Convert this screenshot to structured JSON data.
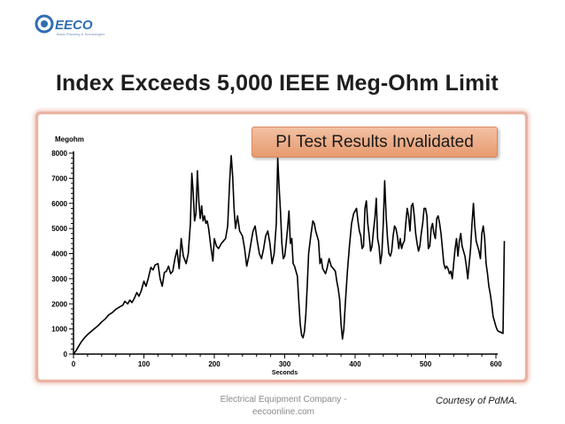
{
  "logo": {
    "text": "EECO",
    "tagline": "Basic Planning & Technologies",
    "accent": "#2f6db3"
  },
  "slide": {
    "title": "Index Exceeds 5,000 IEEE Meg-Ohm Limit"
  },
  "callout": {
    "text": "PI Test Results Invalidated",
    "color": "#ec9f75"
  },
  "footer": {
    "line1": "Electrical Equipment Company -",
    "line2": "eecoonline.com"
  },
  "courtesy": "Courtesy of PdMA.",
  "chart_data": {
    "type": "line",
    "title": "",
    "xlabel": "Seconds",
    "ylabel": "Megohm",
    "xlim": [
      0,
      600
    ],
    "ylim": [
      0,
      8000
    ],
    "xticks": [
      0,
      100,
      200,
      300,
      400,
      500,
      600
    ],
    "yticks": [
      0,
      1000,
      2000,
      3000,
      4000,
      5000,
      6000,
      7000,
      8000
    ],
    "grid": false,
    "series": [
      {
        "color": "#000000",
        "points": [
          [
            0,
            0
          ],
          [
            4,
            150
          ],
          [
            8,
            350
          ],
          [
            12,
            520
          ],
          [
            16,
            660
          ],
          [
            20,
            780
          ],
          [
            25,
            900
          ],
          [
            30,
            1020
          ],
          [
            35,
            1130
          ],
          [
            40,
            1280
          ],
          [
            45,
            1400
          ],
          [
            50,
            1560
          ],
          [
            55,
            1650
          ],
          [
            60,
            1780
          ],
          [
            65,
            1870
          ],
          [
            70,
            1950
          ],
          [
            73,
            2100
          ],
          [
            77,
            2000
          ],
          [
            80,
            2150
          ],
          [
            83,
            2050
          ],
          [
            86,
            2200
          ],
          [
            90,
            2450
          ],
          [
            93,
            2300
          ],
          [
            96,
            2500
          ],
          [
            100,
            2900
          ],
          [
            103,
            2700
          ],
          [
            106,
            3000
          ],
          [
            110,
            3450
          ],
          [
            113,
            3350
          ],
          [
            116,
            3550
          ],
          [
            120,
            3600
          ],
          [
            123,
            3000
          ],
          [
            126,
            2700
          ],
          [
            129,
            3250
          ],
          [
            132,
            3300
          ],
          [
            135,
            3500
          ],
          [
            138,
            3200
          ],
          [
            141,
            3300
          ],
          [
            144,
            3800
          ],
          [
            147,
            4150
          ],
          [
            150,
            3400
          ],
          [
            153,
            4600
          ],
          [
            156,
            3900
          ],
          [
            160,
            3600
          ],
          [
            163,
            4000
          ],
          [
            166,
            5200
          ],
          [
            168,
            7200
          ],
          [
            170,
            6400
          ],
          [
            172,
            5300
          ],
          [
            174,
            5600
          ],
          [
            176,
            7300
          ],
          [
            178,
            6100
          ],
          [
            180,
            5400
          ],
          [
            182,
            5900
          ],
          [
            184,
            5300
          ],
          [
            186,
            5500
          ],
          [
            188,
            5200
          ],
          [
            190,
            5300
          ],
          [
            192,
            5000
          ],
          [
            195,
            4300
          ],
          [
            198,
            3700
          ],
          [
            200,
            4600
          ],
          [
            203,
            4300
          ],
          [
            206,
            4200
          ],
          [
            210,
            4400
          ],
          [
            213,
            4500
          ],
          [
            216,
            4600
          ],
          [
            219,
            5100
          ],
          [
            222,
            7000
          ],
          [
            224,
            7900
          ],
          [
            226,
            7100
          ],
          [
            228,
            5800
          ],
          [
            230,
            5000
          ],
          [
            233,
            5500
          ],
          [
            236,
            4900
          ],
          [
            240,
            4700
          ],
          [
            243,
            4200
          ],
          [
            246,
            3500
          ],
          [
            249,
            3900
          ],
          [
            252,
            4400
          ],
          [
            255,
            4900
          ],
          [
            258,
            5100
          ],
          [
            261,
            4500
          ],
          [
            264,
            4000
          ],
          [
            267,
            3800
          ],
          [
            270,
            4200
          ],
          [
            273,
            4700
          ],
          [
            276,
            4900
          ],
          [
            279,
            4400
          ],
          [
            282,
            3600
          ],
          [
            285,
            4000
          ],
          [
            288,
            5200
          ],
          [
            290,
            7800
          ],
          [
            292,
            6700
          ],
          [
            294,
            5700
          ],
          [
            296,
            4400
          ],
          [
            298,
            3800
          ],
          [
            300,
            3900
          ],
          [
            302,
            4400
          ],
          [
            304,
            5000
          ],
          [
            306,
            5700
          ],
          [
            308,
            4400
          ],
          [
            310,
            4600
          ],
          [
            312,
            3600
          ],
          [
            314,
            3500
          ],
          [
            316,
            3300
          ],
          [
            318,
            3100
          ],
          [
            320,
            2100
          ],
          [
            322,
            1200
          ],
          [
            324,
            750
          ],
          [
            326,
            650
          ],
          [
            328,
            900
          ],
          [
            330,
            1600
          ],
          [
            332,
            2700
          ],
          [
            334,
            4000
          ],
          [
            337,
            4700
          ],
          [
            340,
            5300
          ],
          [
            342,
            5200
          ],
          [
            344,
            4900
          ],
          [
            346,
            4700
          ],
          [
            348,
            4500
          ],
          [
            350,
            3600
          ],
          [
            352,
            3800
          ],
          [
            354,
            3400
          ],
          [
            356,
            3300
          ],
          [
            358,
            3200
          ],
          [
            360,
            3400
          ],
          [
            363,
            3800
          ],
          [
            366,
            3500
          ],
          [
            369,
            3400
          ],
          [
            372,
            3300
          ],
          [
            374,
            2900
          ],
          [
            376,
            2600
          ],
          [
            378,
            2200
          ],
          [
            380,
            1200
          ],
          [
            382,
            600
          ],
          [
            384,
            1000
          ],
          [
            386,
            2000
          ],
          [
            389,
            3300
          ],
          [
            392,
            4300
          ],
          [
            395,
            5200
          ],
          [
            398,
            5600
          ],
          [
            400,
            5700
          ],
          [
            402,
            5800
          ],
          [
            404,
            5300
          ],
          [
            406,
            4900
          ],
          [
            408,
            4700
          ],
          [
            410,
            4200
          ],
          [
            412,
            4300
          ],
          [
            414,
            5800
          ],
          [
            416,
            6100
          ],
          [
            418,
            5200
          ],
          [
            420,
            4700
          ],
          [
            422,
            4100
          ],
          [
            424,
            4300
          ],
          [
            426,
            4900
          ],
          [
            428,
            5400
          ],
          [
            430,
            6200
          ],
          [
            432,
            4600
          ],
          [
            434,
            4300
          ],
          [
            436,
            3600
          ],
          [
            438,
            4000
          ],
          [
            440,
            5200
          ],
          [
            442,
            6900
          ],
          [
            444,
            5500
          ],
          [
            446,
            4600
          ],
          [
            448,
            4000
          ],
          [
            450,
            3900
          ],
          [
            452,
            4100
          ],
          [
            454,
            4700
          ],
          [
            456,
            5100
          ],
          [
            458,
            5000
          ],
          [
            460,
            4700
          ],
          [
            462,
            4200
          ],
          [
            464,
            4600
          ],
          [
            466,
            4200
          ],
          [
            468,
            4400
          ],
          [
            470,
            4500
          ],
          [
            472,
            5200
          ],
          [
            474,
            5800
          ],
          [
            476,
            5500
          ],
          [
            478,
            4900
          ],
          [
            480,
            5900
          ],
          [
            482,
            6000
          ],
          [
            484,
            5500
          ],
          [
            486,
            4800
          ],
          [
            488,
            4400
          ],
          [
            490,
            4100
          ],
          [
            492,
            4300
          ],
          [
            494,
            4800
          ],
          [
            496,
            5200
          ],
          [
            498,
            5800
          ],
          [
            500,
            5800
          ],
          [
            502,
            5500
          ],
          [
            504,
            4200
          ],
          [
            506,
            4300
          ],
          [
            508,
            5000
          ],
          [
            510,
            5200
          ],
          [
            512,
            4800
          ],
          [
            514,
            4600
          ],
          [
            516,
            5400
          ],
          [
            518,
            5500
          ],
          [
            520,
            5200
          ],
          [
            522,
            4800
          ],
          [
            524,
            4200
          ],
          [
            526,
            3600
          ],
          [
            528,
            3400
          ],
          [
            530,
            3500
          ],
          [
            532,
            3400
          ],
          [
            534,
            3200
          ],
          [
            536,
            3300
          ],
          [
            538,
            3000
          ],
          [
            540,
            3600
          ],
          [
            542,
            4200
          ],
          [
            544,
            4600
          ],
          [
            546,
            3900
          ],
          [
            548,
            4500
          ],
          [
            550,
            4800
          ],
          [
            552,
            4300
          ],
          [
            554,
            4100
          ],
          [
            556,
            3900
          ],
          [
            558,
            3500
          ],
          [
            560,
            3000
          ],
          [
            562,
            3600
          ],
          [
            564,
            4200
          ],
          [
            566,
            5200
          ],
          [
            568,
            6000
          ],
          [
            570,
            5100
          ],
          [
            572,
            4500
          ],
          [
            574,
            4300
          ],
          [
            576,
            4100
          ],
          [
            578,
            3800
          ],
          [
            580,
            4800
          ],
          [
            582,
            5100
          ],
          [
            584,
            4600
          ],
          [
            586,
            3600
          ],
          [
            588,
            3200
          ],
          [
            590,
            2700
          ],
          [
            592,
            2400
          ],
          [
            594,
            2000
          ],
          [
            596,
            1500
          ],
          [
            598,
            1300
          ],
          [
            600,
            1100
          ],
          [
            602,
            950
          ],
          [
            604,
            900
          ],
          [
            606,
            880
          ],
          [
            608,
            850
          ],
          [
            610,
            820
          ],
          [
            612,
            4500
          ]
        ]
      }
    ]
  }
}
